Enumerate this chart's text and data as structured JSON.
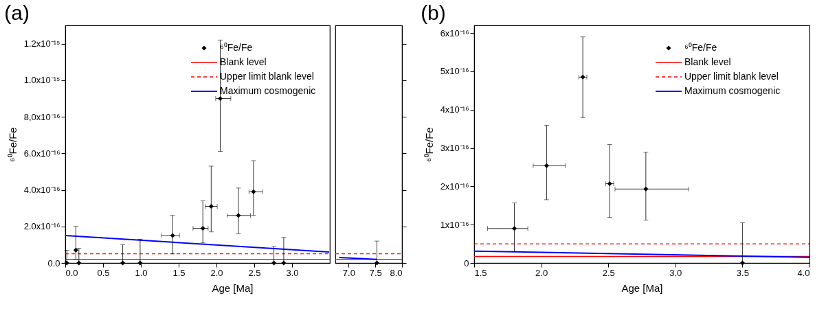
{
  "chart_data": [
    {
      "type": "scatter",
      "title": "(a)",
      "xlabel": "Age [Ma]",
      "ylabel": "⁶⁰Fe/Fe",
      "xlim": [
        0,
        3.5
      ],
      "ylim": [
        0,
        1.3e-15
      ],
      "legend": "top right",
      "xticks": [
        {
          "value": 0,
          "label": "0.0"
        },
        {
          "value": 0.5,
          "label": "0.5"
        },
        {
          "value": 1,
          "label": "1.0"
        },
        {
          "value": 1.5,
          "label": "1.5"
        },
        {
          "value": 2,
          "label": "2.0"
        },
        {
          "value": 2.5,
          "label": "2.5"
        },
        {
          "value": 3,
          "label": "3.0"
        }
      ],
      "yticks": [
        {
          "value": 0,
          "label": "0.0"
        },
        {
          "value": 2e-16,
          "label": "2.0x10⁻¹⁶"
        },
        {
          "value": 4e-16,
          "label": "4.0x10⁻¹⁶"
        },
        {
          "value": 6e-16,
          "label": "6.0x10⁻¹⁶"
        },
        {
          "value": 8e-16,
          "label": "8,0x10⁻¹⁶"
        },
        {
          "value": 1e-15,
          "label": "1.0x10⁻¹⁵"
        },
        {
          "value": 1.2e-15,
          "label": "1.2x10⁻¹⁵"
        }
      ],
      "series": [
        {
          "name": "⁶⁰Fe/Fe",
          "type": "scatter",
          "marker": "diamond",
          "color": "#000000",
          "x": [
            0.02,
            0.14,
            0.18,
            0.76,
            0.99,
            1.42,
            1.82,
            1.93,
            2.05,
            2.29,
            2.49,
            2.76,
            2.89
          ],
          "values": [
            0,
            7e-17,
            0,
            0,
            0,
            1.5e-16,
            1.9e-16,
            3.1e-16,
            9e-16,
            2.6e-16,
            3.9e-16,
            0,
            0
          ],
          "errors": [
            [
              0,
              7e-17
            ],
            [
              2e-17,
              2e-16
            ],
            [
              0,
              8e-17
            ],
            [
              0,
              1e-16
            ],
            [
              0,
              1.3e-16
            ],
            [
              5e-17,
              2.6e-16
            ],
            [
              1.1e-16,
              3.4e-16
            ],
            [
              1.7e-16,
              5.3e-16
            ],
            [
              6.1e-16,
              1.22e-15
            ],
            [
              1.6e-16,
              4.1e-16
            ],
            [
              2.6e-16,
              5.6e-16
            ],
            [
              0,
              9e-17
            ],
            [
              0,
              1.4e-16
            ]
          ],
          "xerrors": [
            null,
            null,
            null,
            null,
            null,
            [
              1.27,
              1.51
            ],
            [
              1.69,
              1.89
            ],
            [
              1.85,
              2.01
            ],
            [
              1.99,
              2.19
            ],
            [
              2.14,
              2.45
            ],
            [
              2.43,
              2.61
            ],
            null,
            null
          ]
        },
        {
          "name": "Blank level",
          "type": "line",
          "line_style": "solid",
          "color": "#ff0000",
          "x": [
            0,
            3.5
          ],
          "values": [
            2e-17,
            2e-17
          ]
        },
        {
          "name": "Upper limit blank level",
          "type": "line",
          "line_style": "dashed",
          "color": "#ff0000",
          "x": [
            0,
            3.5
          ],
          "values": [
            5e-17,
            5e-17
          ]
        },
        {
          "name": "Maximum cosmogenic",
          "type": "line",
          "line_style": "solid",
          "color": "#0000ff",
          "x": [
            0,
            3.49
          ],
          "values": [
            1.5e-16,
            6e-17
          ]
        }
      ]
    },
    {
      "type": "scatter",
      "xlim": [
        6.75,
        8.0
      ],
      "ylim": [
        0,
        1.3e-15
      ],
      "tick_labels": "x",
      "xticks": [
        {
          "value": 7,
          "label": "7.0"
        },
        {
          "value": 7.5,
          "label": "7.5"
        },
        {
          "value": 8,
          "label": "8.0"
        }
      ],
      "yticks": [
        {
          "value": 0,
          "label": null
        },
        {
          "value": 2e-16,
          "label": null
        },
        {
          "value": 4e-16,
          "label": null
        },
        {
          "value": 6e-16,
          "label": null
        },
        {
          "value": 8e-16,
          "label": null
        },
        {
          "value": 1e-15,
          "label": null
        },
        {
          "value": 1.2e-15,
          "label": null
        }
      ],
      "series": [
        {
          "type": "scatter",
          "marker": "diamond",
          "color": "#000000",
          "x": [
            7.53
          ],
          "values": [
            0
          ],
          "errors": [
            [
              0,
              1.2e-16
            ]
          ]
        },
        {
          "type": "line",
          "line_style": "solid",
          "color": "#ff0000",
          "x": [
            6.75,
            8.0
          ],
          "values": [
            2e-17,
            2e-17
          ]
        },
        {
          "type": "line",
          "line_style": "dashed",
          "color": "#ff0000",
          "x": [
            6.75,
            8.0
          ],
          "values": [
            5e-17,
            5e-17
          ]
        },
        {
          "type": "line",
          "line_style": "solid",
          "color": "#0000ff",
          "x": [
            6.82,
            7.53
          ],
          "values": [
            3e-17,
            2e-17
          ]
        }
      ]
    },
    {
      "type": "scatter",
      "title": "(b)",
      "xlabel": "Age [Ma]",
      "ylabel": "⁶⁰Fe/Fe",
      "xlim": [
        1.5,
        4.0
      ],
      "ylim": [
        0,
        6.2e-16
      ],
      "legend": "top right",
      "xticks": [
        {
          "value": 1.5,
          "label": "1.5"
        },
        {
          "value": 2,
          "label": "2.0"
        },
        {
          "value": 2.5,
          "label": "2.5"
        },
        {
          "value": 3,
          "label": "3.0"
        },
        {
          "value": 3.5,
          "label": "3.5"
        },
        {
          "value": 4,
          "label": "4.0"
        }
      ],
      "yticks": [
        0,
        {
          "value": 1e-16,
          "label": "1x10⁻¹⁶"
        },
        {
          "value": 2e-16,
          "label": "2x10⁻¹⁶"
        },
        {
          "value": 3e-16,
          "label": "3x10⁻¹⁶"
        },
        {
          "value": 4e-16,
          "label": "4x10⁻¹⁶"
        },
        {
          "value": 5e-16,
          "label": "5x10⁻¹⁶"
        },
        {
          "value": 6e-16,
          "label": "6x10⁻¹⁶"
        }
      ],
      "series": [
        {
          "name": "⁶⁰Fe/Fe",
          "type": "scatter",
          "marker": "diamond",
          "color": "#000000",
          "x": [
            1.8,
            2.04,
            2.31,
            2.51,
            2.78,
            3.5
          ],
          "values": [
            9e-17,
            2.54e-16,
            4.85e-16,
            2.07e-16,
            1.93e-16,
            0
          ],
          "errors": [
            [
              3e-17,
              1.57e-16
            ],
            [
              1.65e-16,
              3.59e-16
            ],
            [
              3.79e-16,
              5.9e-16
            ],
            [
              1.19e-16,
              3.09e-16
            ],
            [
              1.12e-16,
              2.89e-16
            ],
            [
              0,
              1.05e-16
            ]
          ],
          "xerrors": [
            [
              1.6,
              1.9
            ],
            [
              1.94,
              2.18
            ],
            [
              2.28,
              2.34
            ],
            [
              2.48,
              2.54
            ],
            [
              2.55,
              3.1
            ],
            null
          ]
        },
        {
          "name": "Blank level",
          "type": "line",
          "line_style": "solid",
          "color": "#ff0000",
          "x": [
            1.5,
            4.0
          ],
          "values": [
            1.7e-17,
            1.7e-17
          ]
        },
        {
          "name": "Upper limit blank level",
          "type": "line",
          "line_style": "dashed",
          "color": "#ff0000",
          "x": [
            1.5,
            4.0
          ],
          "values": [
            5e-17,
            5e-17
          ]
        },
        {
          "name": "Maximum cosmogenic",
          "type": "line",
          "line_style": "solid",
          "color": "#0000ff",
          "x": [
            1.5,
            4.0
          ],
          "values": [
            3.1e-17,
            1.5e-17
          ]
        }
      ]
    }
  ]
}
